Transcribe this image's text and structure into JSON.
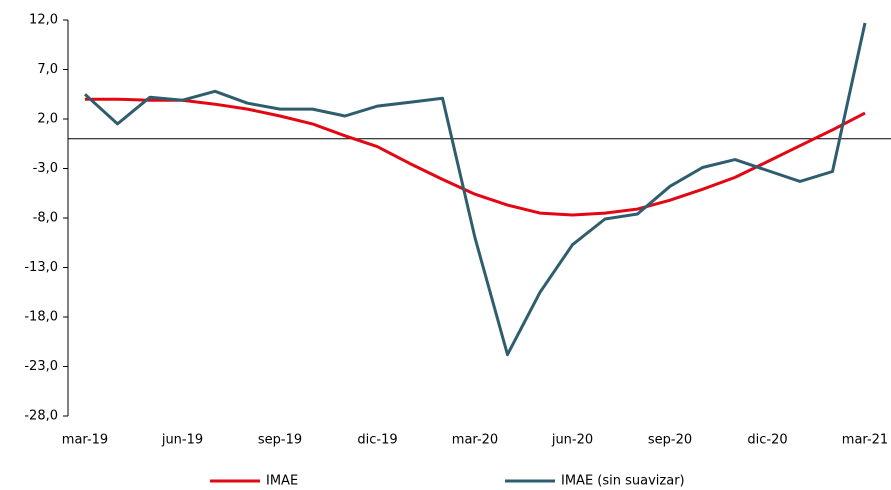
{
  "chart_data": {
    "type": "line",
    "categories": [
      "mar-19",
      null,
      null,
      "jun-19",
      null,
      null,
      "sep-19",
      null,
      null,
      "dic-19",
      null,
      null,
      "mar-20",
      null,
      null,
      "jun-20",
      null,
      null,
      "sep-20",
      null,
      null,
      "dic-20",
      null,
      null,
      "mar-21"
    ],
    "series": [
      {
        "name": "IMAE",
        "color": "#e30613",
        "values": [
          4.0,
          4.0,
          3.9,
          3.9,
          3.5,
          3.0,
          2.3,
          1.5,
          0.3,
          -0.8,
          -2.5,
          -4.1,
          -5.6,
          -6.7,
          -7.5,
          -7.7,
          -7.5,
          -7.1,
          -6.2,
          -5.1,
          -3.9,
          -2.3,
          -0.7,
          0.9,
          2.6
        ]
      },
      {
        "name": "IMAE (sin suavizar)",
        "color": "#2e5e6e",
        "values": [
          4.5,
          1.5,
          4.2,
          3.9,
          4.8,
          3.6,
          3.0,
          3.0,
          2.3,
          3.3,
          3.7,
          4.1,
          -10.0,
          -21.8,
          -15.5,
          -10.7,
          -8.1,
          -7.6,
          -4.8,
          -2.9,
          -2.1,
          -3.2,
          -4.3,
          -3.3,
          11.7
        ]
      }
    ],
    "ylim": [
      -28,
      12
    ],
    "yticks": [
      {
        "value": 12,
        "label": "12,0"
      },
      {
        "value": 7,
        "label": "7,0"
      },
      {
        "value": 2,
        "label": "2,0"
      },
      {
        "value": -3,
        "label": "-3,0"
      },
      {
        "value": -8,
        "label": "-8,0"
      },
      {
        "value": -13,
        "label": "-13,0"
      },
      {
        "value": -18,
        "label": "-18,0"
      },
      {
        "value": -23,
        "label": "-23,0"
      },
      {
        "value": -28,
        "label": "-28,0"
      }
    ],
    "legend": "bottom"
  }
}
